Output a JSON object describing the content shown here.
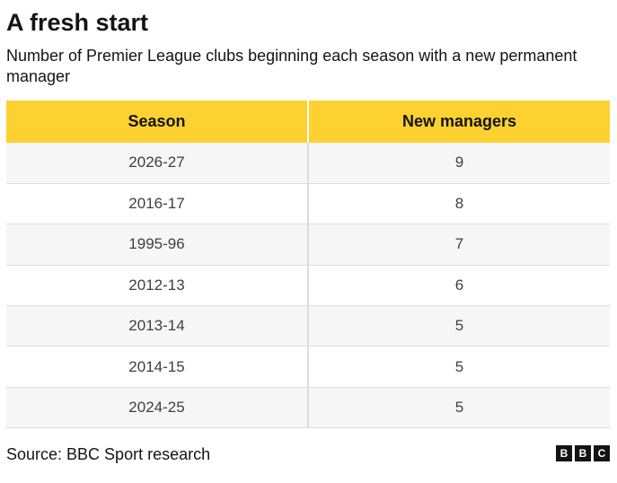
{
  "header": {
    "title": "A fresh start",
    "subtitle": "Number of Premier League clubs beginning each season with a new permanent manager"
  },
  "chart_data": {
    "type": "table",
    "columns": [
      "Season",
      "New managers"
    ],
    "rows": [
      {
        "season": "2026-27",
        "new_managers": 9
      },
      {
        "season": "2016-17",
        "new_managers": 8
      },
      {
        "season": "1995-96",
        "new_managers": 7
      },
      {
        "season": "2012-13",
        "new_managers": 6
      },
      {
        "season": "2013-14",
        "new_managers": 5
      },
      {
        "season": "2014-15",
        "new_managers": 5
      },
      {
        "season": "2024-25",
        "new_managers": 5
      }
    ],
    "header_color": "#fdd130"
  },
  "footer": {
    "source": "Source: BBC Sport research",
    "logo_letters": [
      "B",
      "B",
      "C"
    ]
  }
}
